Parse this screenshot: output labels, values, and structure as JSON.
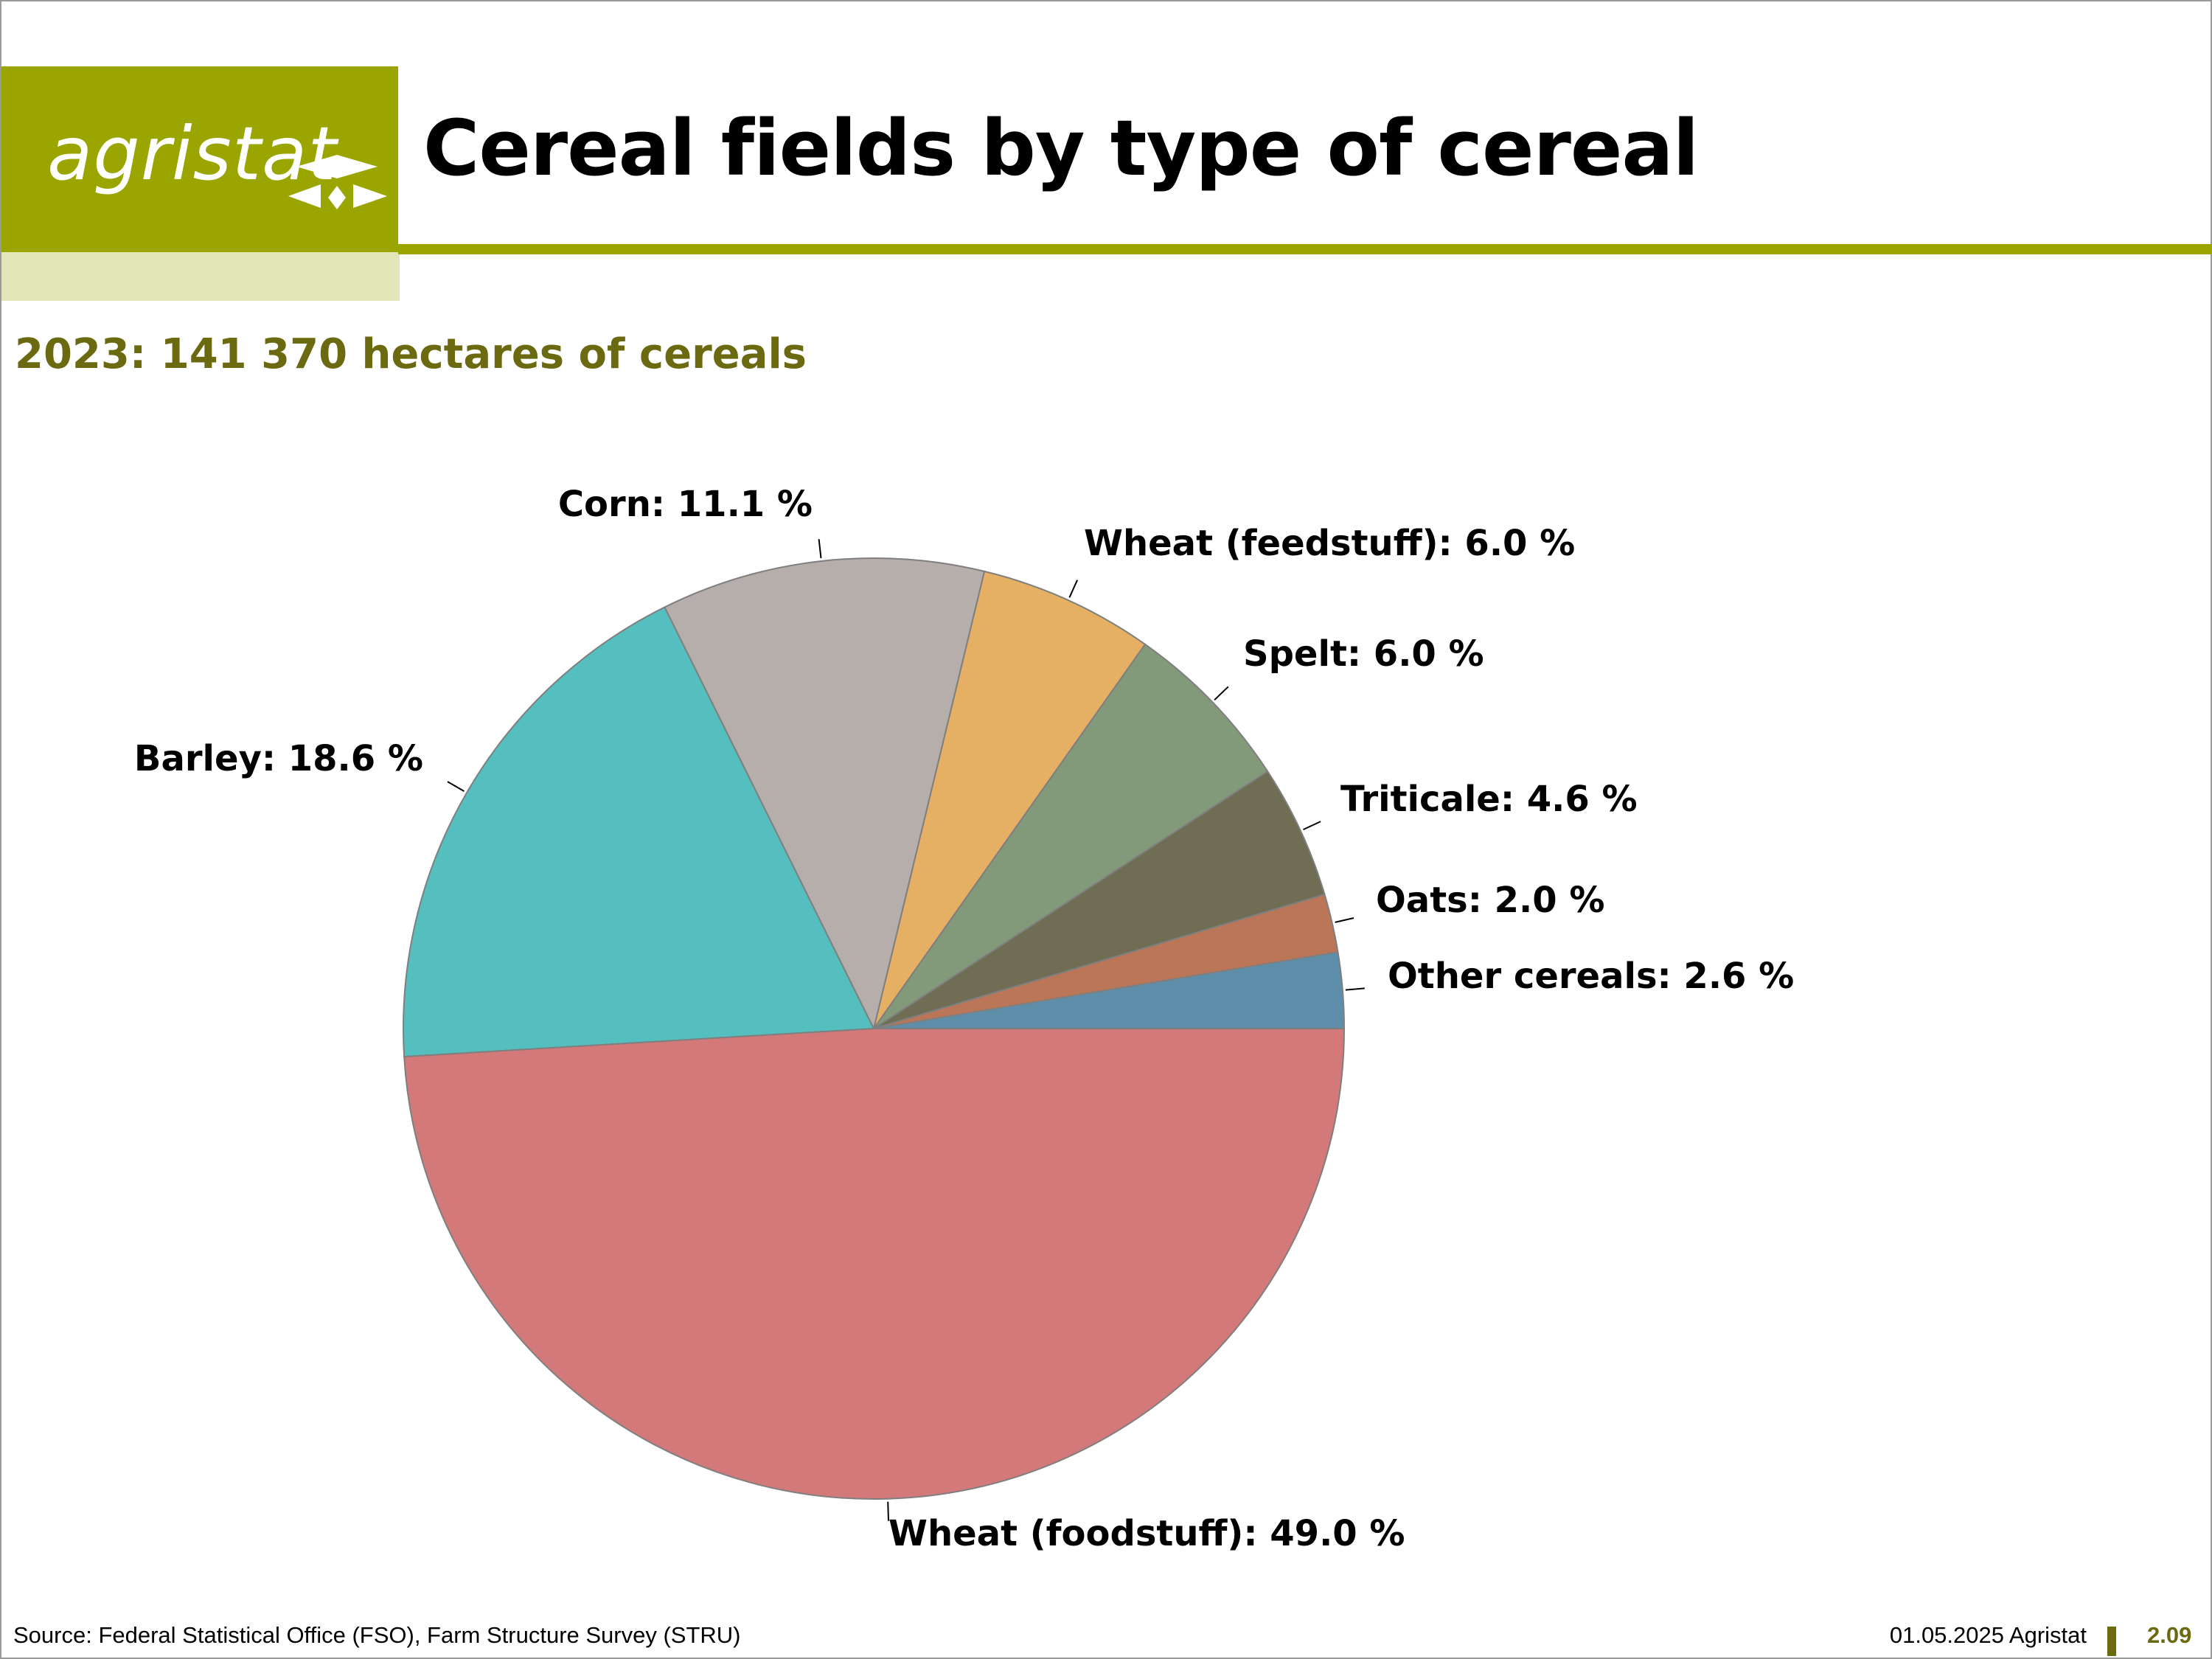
{
  "header": {
    "logo_text": "agristat",
    "title": "Cereal fields by type of cereal"
  },
  "subtitle": "2023: 141 370 hectares of cereals",
  "colors": {
    "brand": "#9aa500",
    "brand_light": "#e3e6b8",
    "subtitle": "#6b6a10"
  },
  "chart_data": {
    "type": "pie",
    "title": "",
    "slices": [
      {
        "name": "Other cereals",
        "value": 2.6,
        "label": "Other cereals: 2.6 %",
        "color": "#5f8eab"
      },
      {
        "name": "Oats",
        "value": 2.0,
        "label": "Oats: 2.0 %",
        "color": "#ba7656"
      },
      {
        "name": "Triticale",
        "value": 4.6,
        "label": "Triticale: 4.6 %",
        "color": "#6f6d54"
      },
      {
        "name": "Spelt",
        "value": 6.0,
        "label": "Spelt: 6.0 %",
        "color": "#82997a"
      },
      {
        "name": "Wheat (feedstuff)",
        "value": 6.0,
        "label": "Wheat (feedstuff): 6.0 %",
        "color": "#e5b063"
      },
      {
        "name": "Corn",
        "value": 11.1,
        "label": "Corn: 11.1 %",
        "color": "#b6aeaa"
      },
      {
        "name": "Barley",
        "value": 18.6,
        "label": "Barley: 18.6 %",
        "color": "#55bfbf"
      },
      {
        "name": "Wheat (foodstuff)",
        "value": 49.0,
        "label": "Wheat (foodstuff): 49.0 %",
        "color": "#d47979"
      }
    ]
  },
  "footer": {
    "source": "Source: Federal Statistical Office (FSO), Farm Structure Survey (STRU)",
    "date": "01.05.2025 Agristat",
    "page": "2.09"
  }
}
